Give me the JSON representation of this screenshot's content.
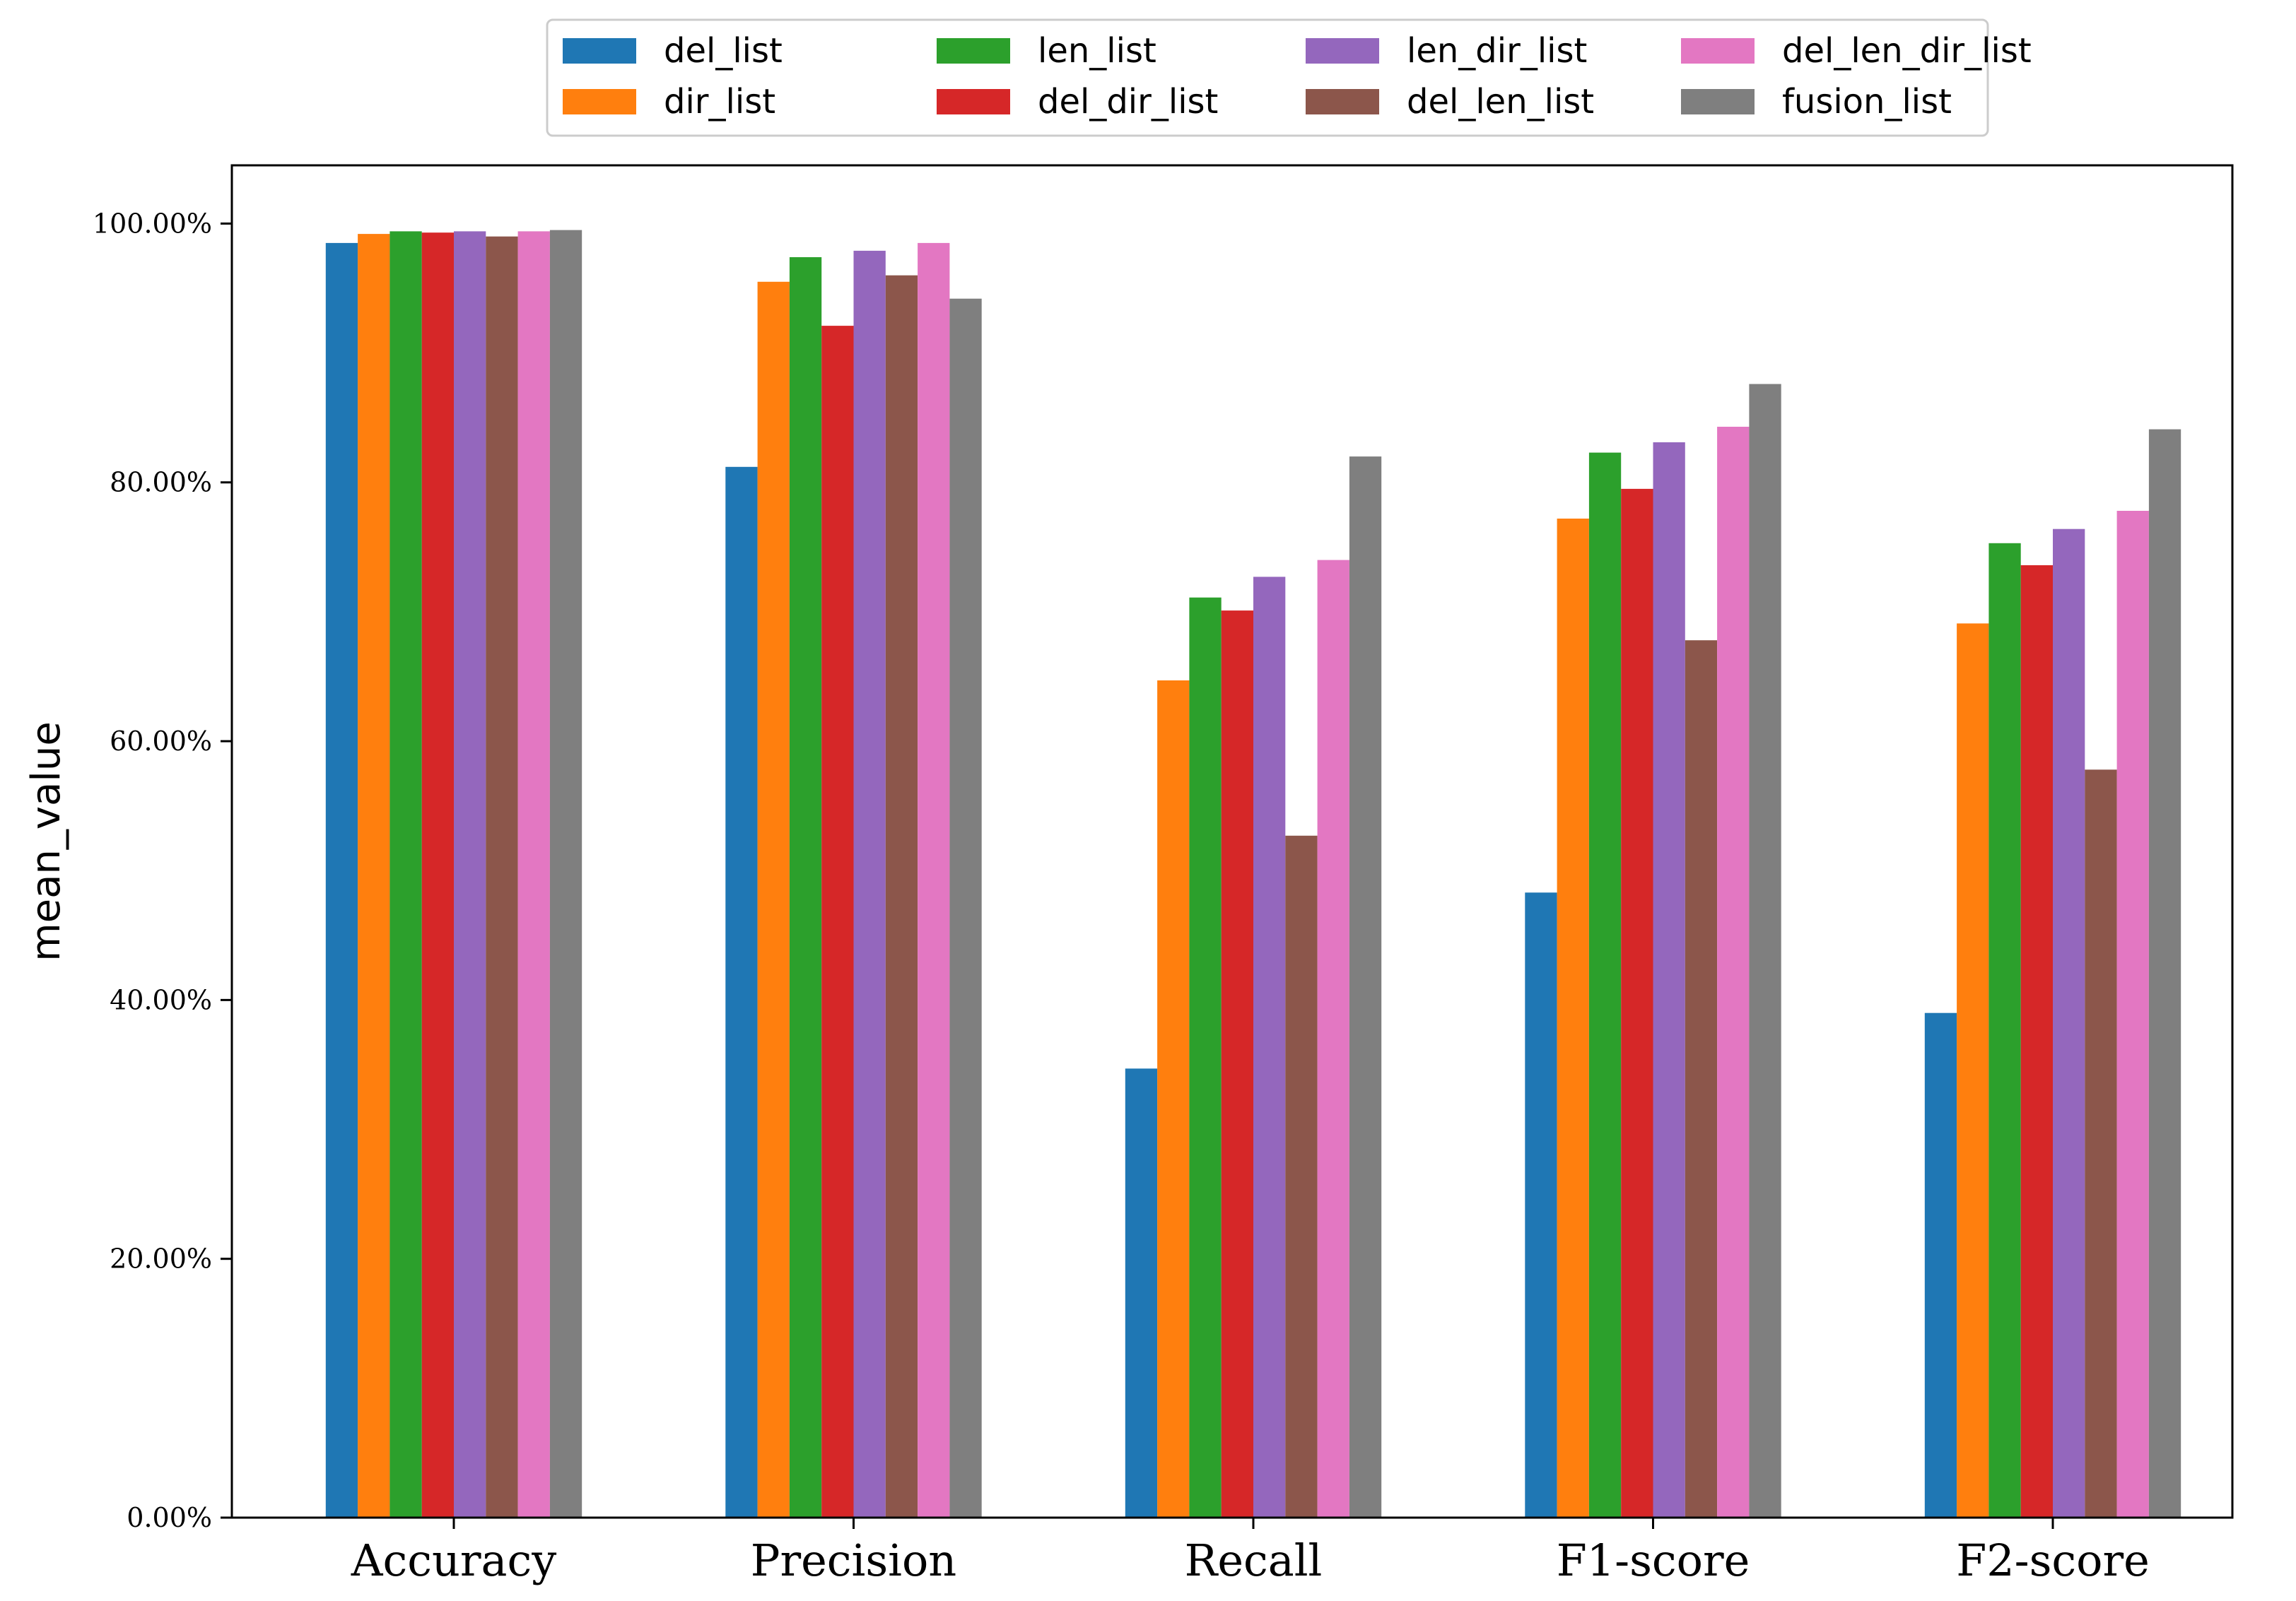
{
  "chart_data": {
    "type": "bar",
    "title": "",
    "xlabel": "",
    "ylabel": "mean_value",
    "ylim": [
      0,
      104.5
    ],
    "yticks": [
      {
        "value": 0,
        "label": "0.00%"
      },
      {
        "value": 20,
        "label": "20.00%"
      },
      {
        "value": 40,
        "label": "40.00%"
      },
      {
        "value": 60,
        "label": "60.00%"
      },
      {
        "value": 80,
        "label": "80.00%"
      },
      {
        "value": 100,
        "label": "100.00%"
      }
    ],
    "grid": false,
    "legend_position": "top-center",
    "categories": [
      "Accuracy",
      "Precision",
      "Recall",
      "F1-score",
      "F2-score"
    ],
    "series": [
      {
        "name": "del_list",
        "color": "#1f77b4",
        "values": [
          98.5,
          81.2,
          34.7,
          48.3,
          39.0
        ]
      },
      {
        "name": "dir_list",
        "color": "#ff7f0e",
        "values": [
          99.2,
          95.5,
          64.7,
          77.2,
          69.1
        ]
      },
      {
        "name": "len_list",
        "color": "#2ca02c",
        "values": [
          99.4,
          97.4,
          71.1,
          82.3,
          75.3
        ]
      },
      {
        "name": "del_dir_list",
        "color": "#d62728",
        "values": [
          99.3,
          92.1,
          70.1,
          79.5,
          73.6
        ]
      },
      {
        "name": "len_dir_list",
        "color": "#9467bd",
        "values": [
          99.4,
          97.9,
          72.7,
          83.1,
          76.4
        ]
      },
      {
        "name": "del_len_list",
        "color": "#8c564b",
        "values": [
          99.0,
          96.0,
          52.7,
          67.8,
          57.8
        ]
      },
      {
        "name": "del_len_dir_list",
        "color": "#e377c2",
        "values": [
          99.4,
          98.5,
          74.0,
          84.3,
          77.8
        ]
      },
      {
        "name": "fusion_list",
        "color": "#7f7f7f",
        "values": [
          99.5,
          94.2,
          82.0,
          87.6,
          84.1
        ]
      }
    ]
  }
}
